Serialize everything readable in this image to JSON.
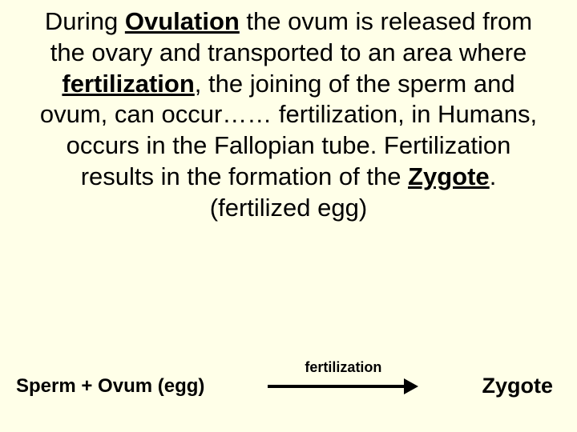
{
  "slide": {
    "background_color": "#ffffe8",
    "text_color": "#000000",
    "main_fontsize": 31,
    "bottom_left_fontsize": 24,
    "arrow_label_fontsize": 18,
    "zygote_fontsize": 27,
    "arrow_color": "#000000",
    "arrow_line_width": 170,
    "arrow_line_height": 4,
    "segments": {
      "pre1": "During ",
      "ovulation": "Ovulation",
      "post1": " the ovum is released from the ovary and transported to an area where ",
      "fertilization": "fertilization",
      "post2": ", the joining of the sperm and ovum, can occur…… fertilization, in Humans, occurs in the Fallopian tube.  Fertilization results in the formation of the ",
      "zygote": "Zygote",
      "post3": ". (fertilized egg)"
    },
    "bottom": {
      "left": "Sperm + Ovum (egg)",
      "arrow_label": "fertilization",
      "right": "Zygote"
    }
  }
}
